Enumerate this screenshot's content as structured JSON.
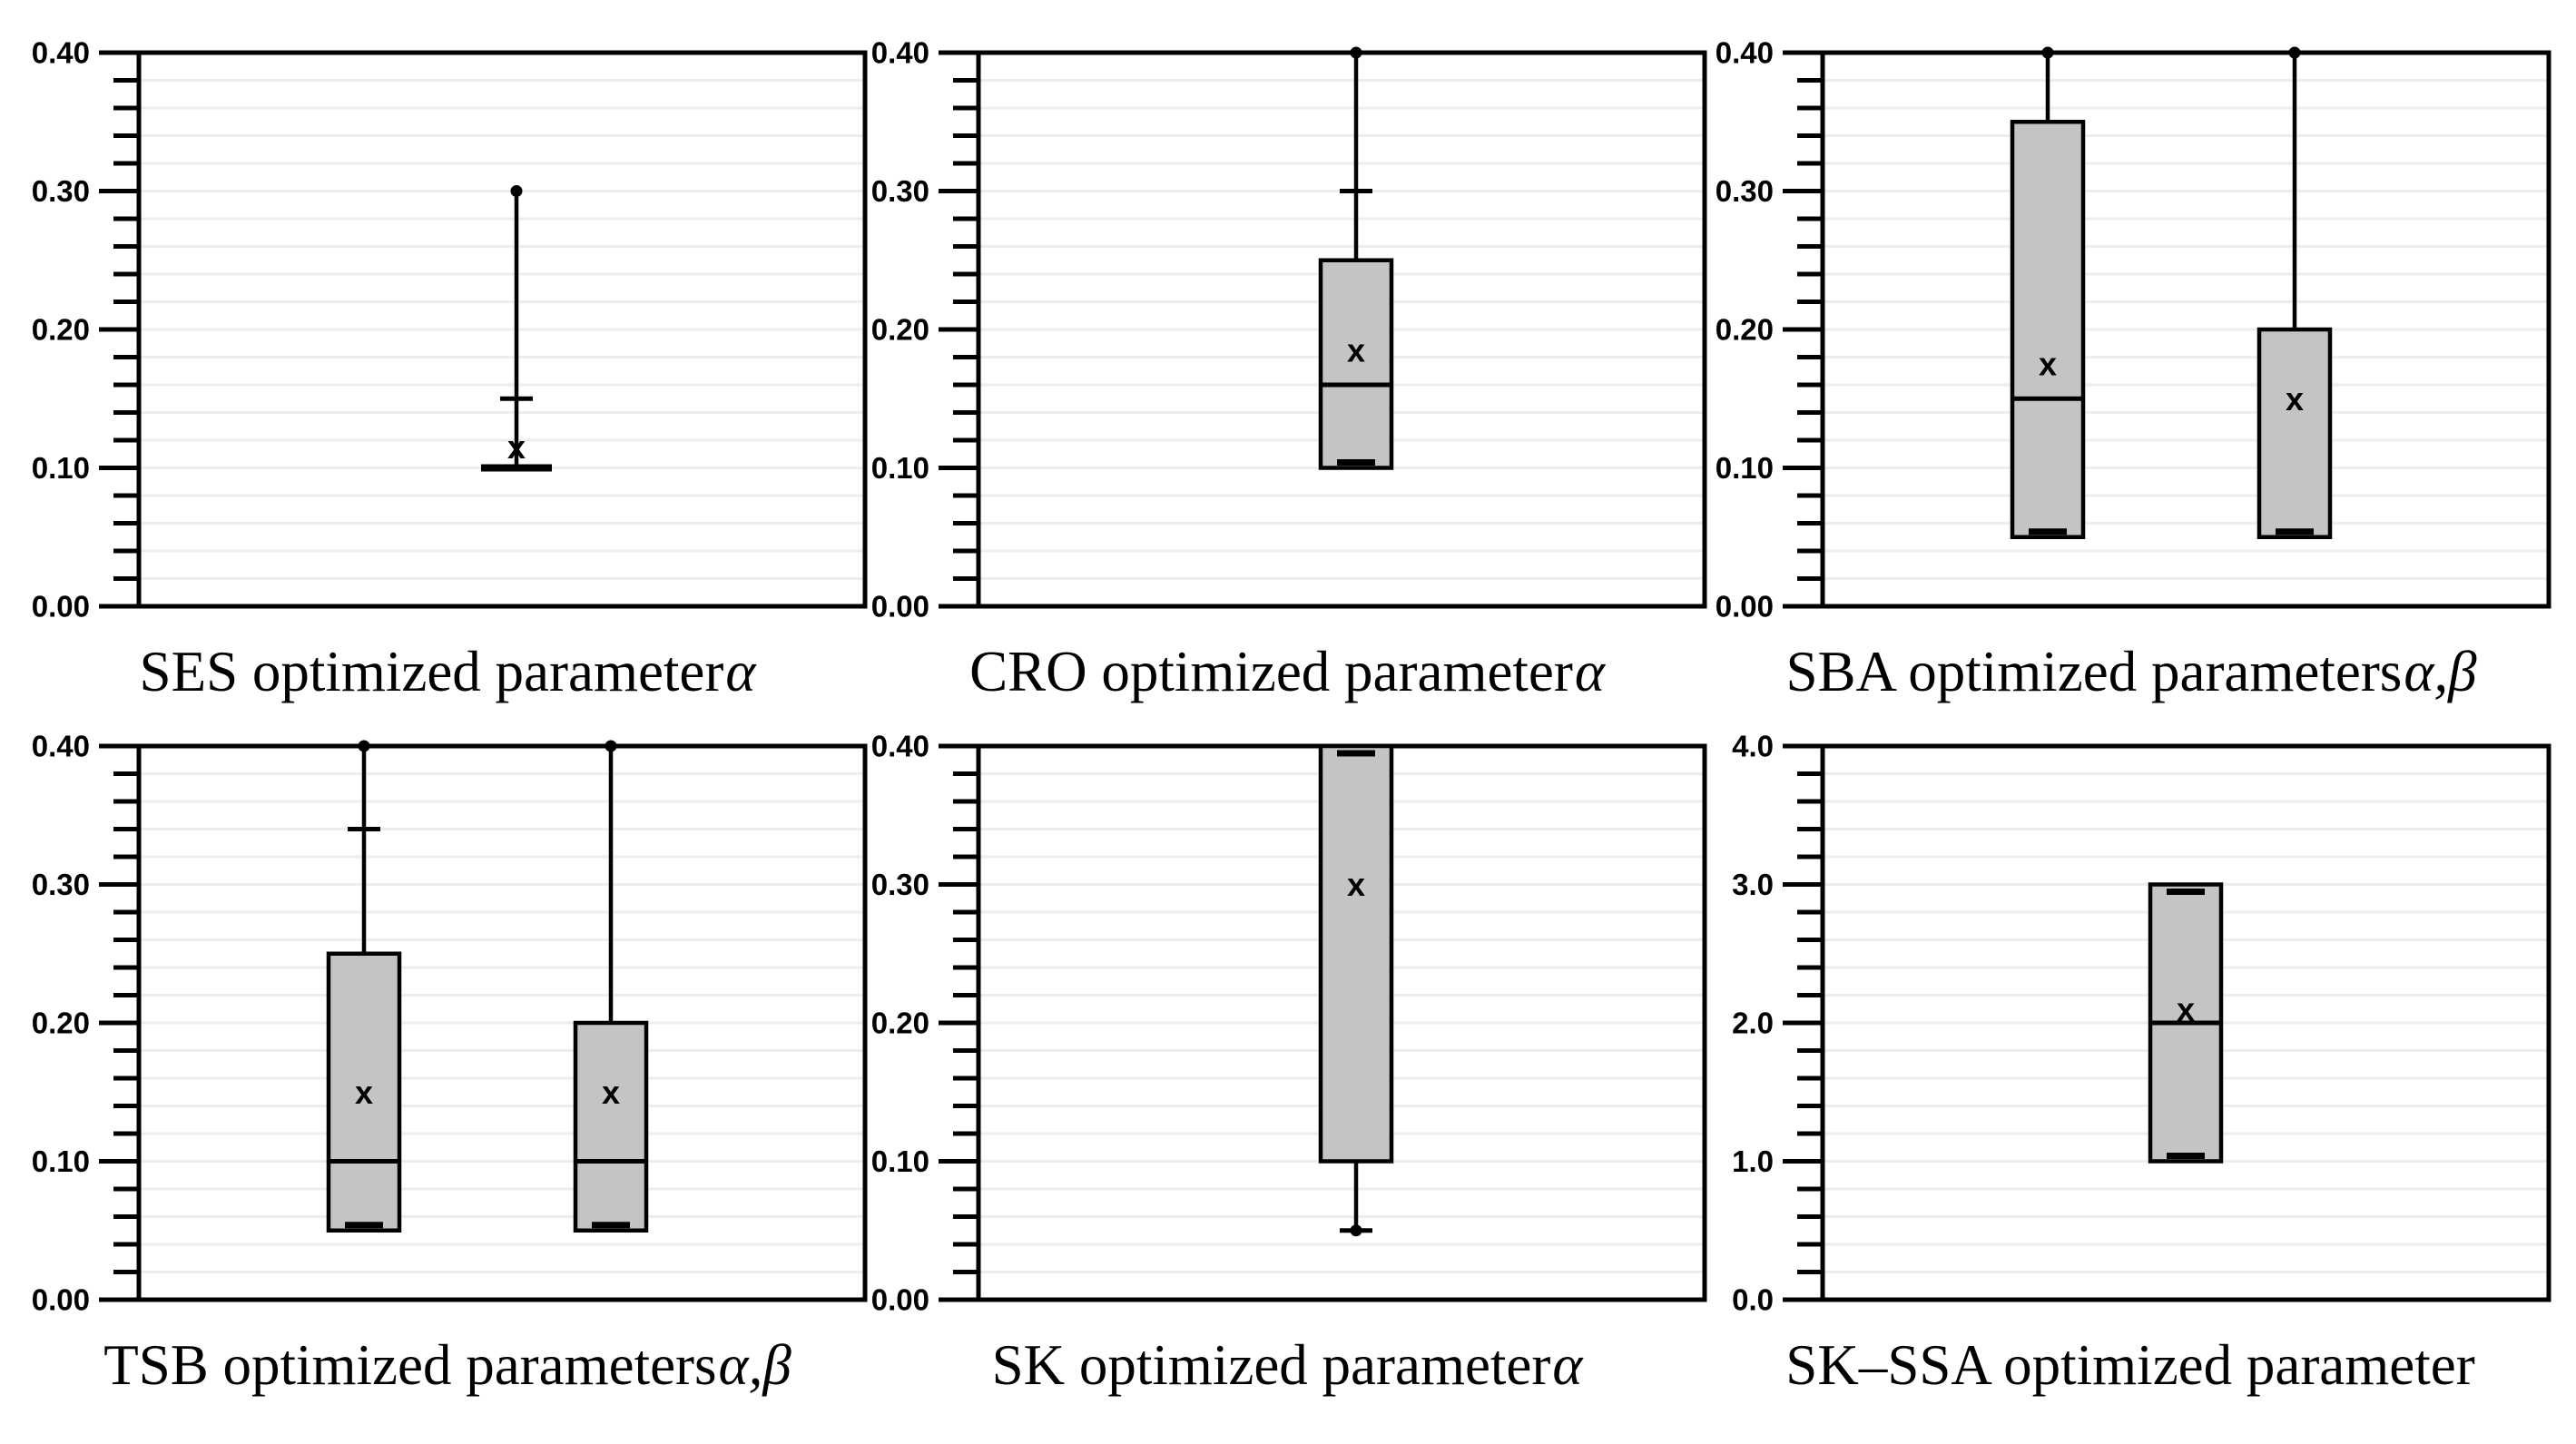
{
  "colors": {
    "box_fill": "#c4c4c4",
    "line": "#000000",
    "grid": "#ededed",
    "background": "#ffffff"
  },
  "chart_data": [
    {
      "type": "box",
      "title": "SES optimized parameter α",
      "caption_text": "SES optimized parameter",
      "caption_greek": "α",
      "ylim": [
        0,
        0.4
      ],
      "ytick_labels": [
        "0.00",
        "0.10",
        "0.20",
        "0.30",
        "0.40"
      ],
      "minor_step": 0.02,
      "grid": true,
      "legend": "none",
      "series": [
        {
          "name": "alpha",
          "x_frac": 0.52,
          "q1": 0.1,
          "median": 0.1,
          "q3": 0.1,
          "mean": 0.115,
          "whisker_high": 0.3,
          "whisker_high_cap": 0.15,
          "outlier_high": 0.3
        }
      ]
    },
    {
      "type": "box",
      "title": "CRO optimized parameter α",
      "caption_text": "CRO optimized parameter",
      "caption_greek": "α",
      "ylim": [
        0,
        0.4
      ],
      "ytick_labels": [
        "0.00",
        "0.10",
        "0.20",
        "0.30",
        "0.40"
      ],
      "minor_step": 0.02,
      "grid": true,
      "legend": "none",
      "series": [
        {
          "name": "alpha",
          "x_frac": 0.52,
          "q1": 0.1,
          "median": 0.16,
          "q3": 0.25,
          "mean": 0.185,
          "whisker_high": 0.4,
          "whisker_high_cap": 0.3,
          "outlier_high": 0.4,
          "min_dash": 0.1
        }
      ]
    },
    {
      "type": "box",
      "title": "SBA optimized parameters α,β",
      "caption_text": "SBA optimized parameters",
      "caption_greek": "α,β",
      "ylim": [
        0,
        0.4
      ],
      "ytick_labels": [
        "0.00",
        "0.10",
        "0.20",
        "0.30",
        "0.40"
      ],
      "minor_step": 0.02,
      "grid": true,
      "legend": "none",
      "series": [
        {
          "name": "alpha",
          "x_frac": 0.31,
          "q1": 0.05,
          "median": 0.15,
          "q3": 0.35,
          "mean": 0.175,
          "whisker_high": 0.4,
          "outlier_high": 0.4,
          "min_dash": 0.05
        },
        {
          "name": "beta",
          "x_frac": 0.65,
          "q1": 0.05,
          "q3": 0.2,
          "mean": 0.15,
          "whisker_high": 0.4,
          "outlier_high": 0.4,
          "min_dash": 0.05
        }
      ]
    },
    {
      "type": "box",
      "title": "TSB optimized parameters α,β",
      "caption_text": "TSB optimized parameters",
      "caption_greek": "α,β",
      "ylim": [
        0,
        0.4
      ],
      "ytick_labels": [
        "0.00",
        "0.10",
        "0.20",
        "0.30",
        "0.40"
      ],
      "minor_step": 0.02,
      "grid": true,
      "legend": "none",
      "series": [
        {
          "name": "alpha",
          "x_frac": 0.31,
          "q1": 0.05,
          "median": 0.1,
          "q3": 0.25,
          "mean": 0.15,
          "whisker_high": 0.4,
          "whisker_high_cap": 0.34,
          "outlier_high": 0.4,
          "min_dash": 0.05
        },
        {
          "name": "beta",
          "x_frac": 0.65,
          "q1": 0.05,
          "median": 0.1,
          "q3": 0.2,
          "mean": 0.15,
          "whisker_high": 0.4,
          "outlier_high": 0.4,
          "min_dash": 0.05
        }
      ]
    },
    {
      "type": "box",
      "title": "SK optimized parameter α",
      "caption_text": "SK optimized parameter",
      "caption_greek": "α",
      "ylim": [
        0,
        0.4
      ],
      "ytick_labels": [
        "0.00",
        "0.10",
        "0.20",
        "0.30",
        "0.40"
      ],
      "minor_step": 0.02,
      "grid": true,
      "legend": "none",
      "series": [
        {
          "name": "alpha",
          "x_frac": 0.52,
          "q1": 0.1,
          "q3": 0.4,
          "mean": 0.3,
          "whisker_low": 0.05,
          "whisker_low_cap": 0.05,
          "outlier_low": 0.05,
          "max_dash": 0.4
        }
      ]
    },
    {
      "type": "box",
      "title": "SK–SSA optimized parameter",
      "caption_text": "SK–SSA optimized parameter",
      "caption_greek": "",
      "ylim": [
        0,
        4.0
      ],
      "ytick_labels": [
        "0.0",
        "1.0",
        "2.0",
        "3.0",
        "4.0"
      ],
      "minor_step": 0.2,
      "grid": true,
      "legend": "none",
      "series": [
        {
          "name": "parameter",
          "x_frac": 0.5,
          "q1": 1.0,
          "median": 2.0,
          "q3": 3.0,
          "mean": 2.1,
          "min_dash": 1.0,
          "max_dash": 3.0
        }
      ]
    }
  ]
}
